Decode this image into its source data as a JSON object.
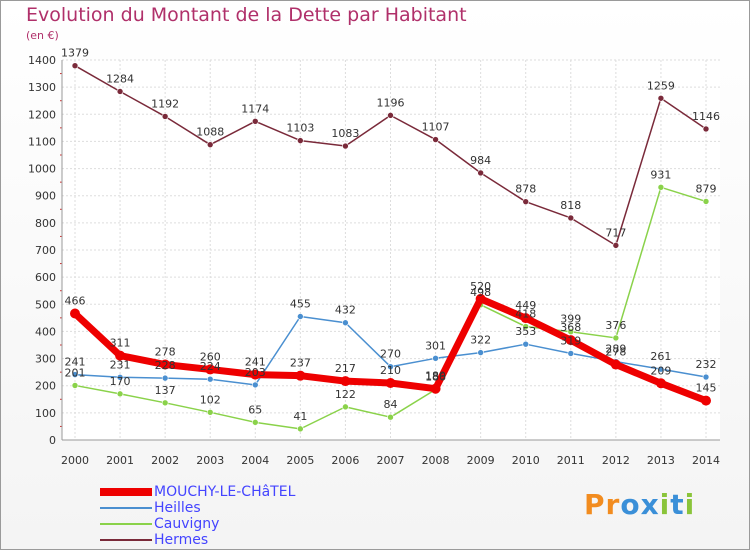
{
  "chart_data": {
    "type": "line",
    "title": "Evolution du Montant de la Dette par Habitant",
    "unit": "(en €)",
    "x": [
      2000,
      2001,
      2002,
      2003,
      2004,
      2005,
      2006,
      2007,
      2008,
      2009,
      2010,
      2011,
      2012,
      2013,
      2014
    ],
    "ylim": [
      0,
      1400
    ],
    "yticks": [
      0,
      100,
      200,
      300,
      400,
      500,
      600,
      700,
      800,
      900,
      1000,
      1100,
      1200,
      1300,
      1400
    ],
    "grid": true,
    "legend_position": "bottom-left",
    "series": [
      {
        "name": "Hermes",
        "color": "#7a2a3a",
        "values": [
          1379,
          1284,
          1192,
          1088,
          1174,
          1103,
          1083,
          1196,
          1107,
          984,
          878,
          818,
          717,
          1259,
          1146
        ]
      },
      {
        "name": "Heilles",
        "color": "#4a8fd0",
        "values": [
          241,
          231,
          228,
          224,
          203,
          455,
          432,
          270,
          301,
          322,
          353,
          319,
          289,
          261,
          232
        ]
      },
      {
        "name": "Cauvigny",
        "color": "#8ad24a",
        "values": [
          201,
          170,
          137,
          102,
          65,
          41,
          122,
          84,
          186,
          498,
          418,
          399,
          376,
          931,
          879
        ]
      },
      {
        "name": "MOUCHY-LE-CHâTEL",
        "color": "#ee0000",
        "values": [
          466,
          311,
          278,
          260,
          241,
          237,
          217,
          210,
          189,
          520,
          449,
          368,
          278,
          209,
          145
        ]
      }
    ]
  },
  "legend": [
    {
      "label": "MOUCHY-LE-CHâTEL",
      "color": "#ee0000",
      "text_color": "#4444ff",
      "thick": true
    },
    {
      "label": "Heilles",
      "color": "#4a8fd0",
      "text_color": "#4444ff",
      "thick": false
    },
    {
      "label": "Cauvigny",
      "color": "#8ad24a",
      "text_color": "#4444ff",
      "thick": false
    },
    {
      "label": "Hermes",
      "color": "#7a2a3a",
      "text_color": "#4444ff",
      "thick": false
    }
  ],
  "logo": {
    "letters": [
      "P",
      "r",
      "o",
      "x",
      "i",
      "t",
      "i"
    ],
    "colors": [
      "#f28c1f",
      "#f28c1f",
      "#3a8fd8",
      "#3a8fd8",
      "#8ac43a",
      "#3a8fd8",
      "#8ac43a"
    ]
  }
}
